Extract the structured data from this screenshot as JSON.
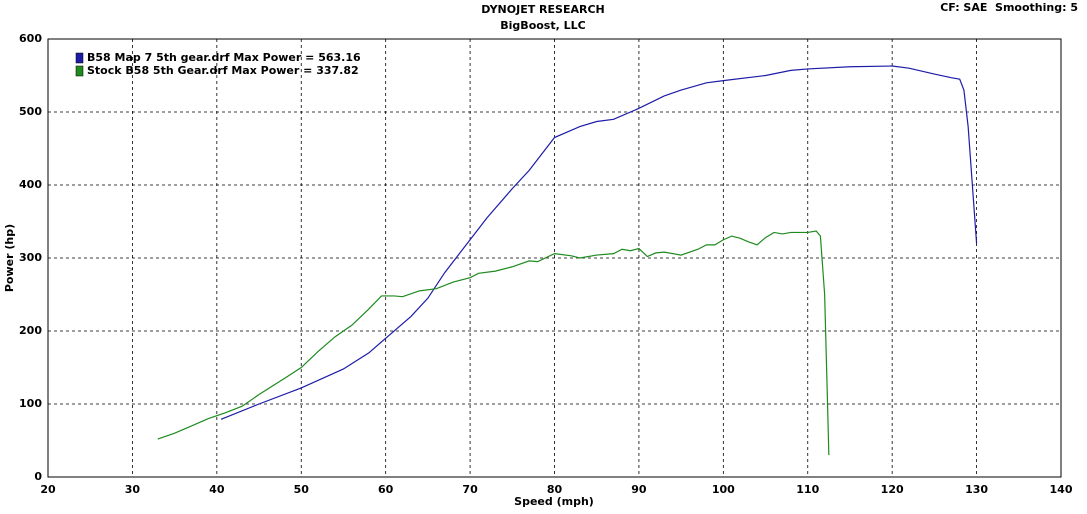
{
  "chart_data": {
    "type": "line",
    "title": "DYNOJET RESEARCH",
    "subtitle": "BigBoost, LLC",
    "corner_note": "CF: SAE  Smoothing: 5",
    "x_label": "Speed (mph)",
    "y_label": "Power (hp)",
    "xlim": [
      20,
      140
    ],
    "xticks": [
      20,
      30,
      40,
      50,
      60,
      70,
      80,
      90,
      100,
      110,
      120,
      130,
      140
    ],
    "ylim": [
      0,
      600
    ],
    "yticks": [
      0,
      100,
      200,
      300,
      400,
      500,
      600
    ],
    "grid": true,
    "legend": "top-left",
    "series": [
      {
        "name": "B58 Map 7 5th gear.drf Max Power = 563.16",
        "color": "#1c1ca8",
        "x": [
          40.5,
          45,
          50,
          55,
          58,
          60,
          63,
          65,
          67,
          70,
          72,
          75,
          77,
          80,
          83,
          85,
          87,
          90,
          93,
          95,
          98,
          100,
          105,
          108,
          110,
          115,
          120,
          122,
          125,
          127,
          128,
          128.5,
          129,
          129.5,
          130
        ],
        "values": [
          79,
          100,
          122,
          148,
          170,
          190,
          220,
          245,
          280,
          325,
          355,
          395,
          420,
          465,
          480,
          487,
          490,
          505,
          522,
          530,
          540,
          543,
          550,
          557,
          559,
          562,
          563,
          560,
          552,
          547,
          545,
          530,
          480,
          400,
          320
        ]
      },
      {
        "name": "Stock B58 5th Gear.drf Max Power = 337.82",
        "color": "#1f8a1f",
        "x": [
          33,
          35,
          37,
          39,
          41,
          43,
          45,
          48,
          50,
          52,
          54,
          56,
          58,
          59.5,
          61,
          62,
          64,
          66,
          68,
          70,
          71,
          73,
          75,
          77,
          78,
          80,
          82,
          83,
          85,
          87,
          88,
          89,
          90,
          91,
          92,
          93,
          95,
          97,
          98,
          99,
          100,
          101,
          102,
          103,
          104,
          105,
          106,
          107,
          108,
          109,
          110,
          111,
          111.5,
          112,
          112.3,
          112.5
        ],
        "values": [
          52,
          60,
          70,
          80,
          88,
          97,
          113,
          135,
          150,
          172,
          192,
          208,
          230,
          248,
          248,
          247,
          255,
          258,
          267,
          273,
          279,
          282,
          288,
          296,
          295,
          306,
          303,
          300,
          304,
          306,
          312,
          310,
          313,
          302,
          307,
          308,
          304,
          312,
          318,
          318,
          325,
          330,
          327,
          322,
          318,
          328,
          335,
          333,
          335,
          335,
          335,
          337,
          330,
          250,
          120,
          30
        ]
      }
    ]
  }
}
